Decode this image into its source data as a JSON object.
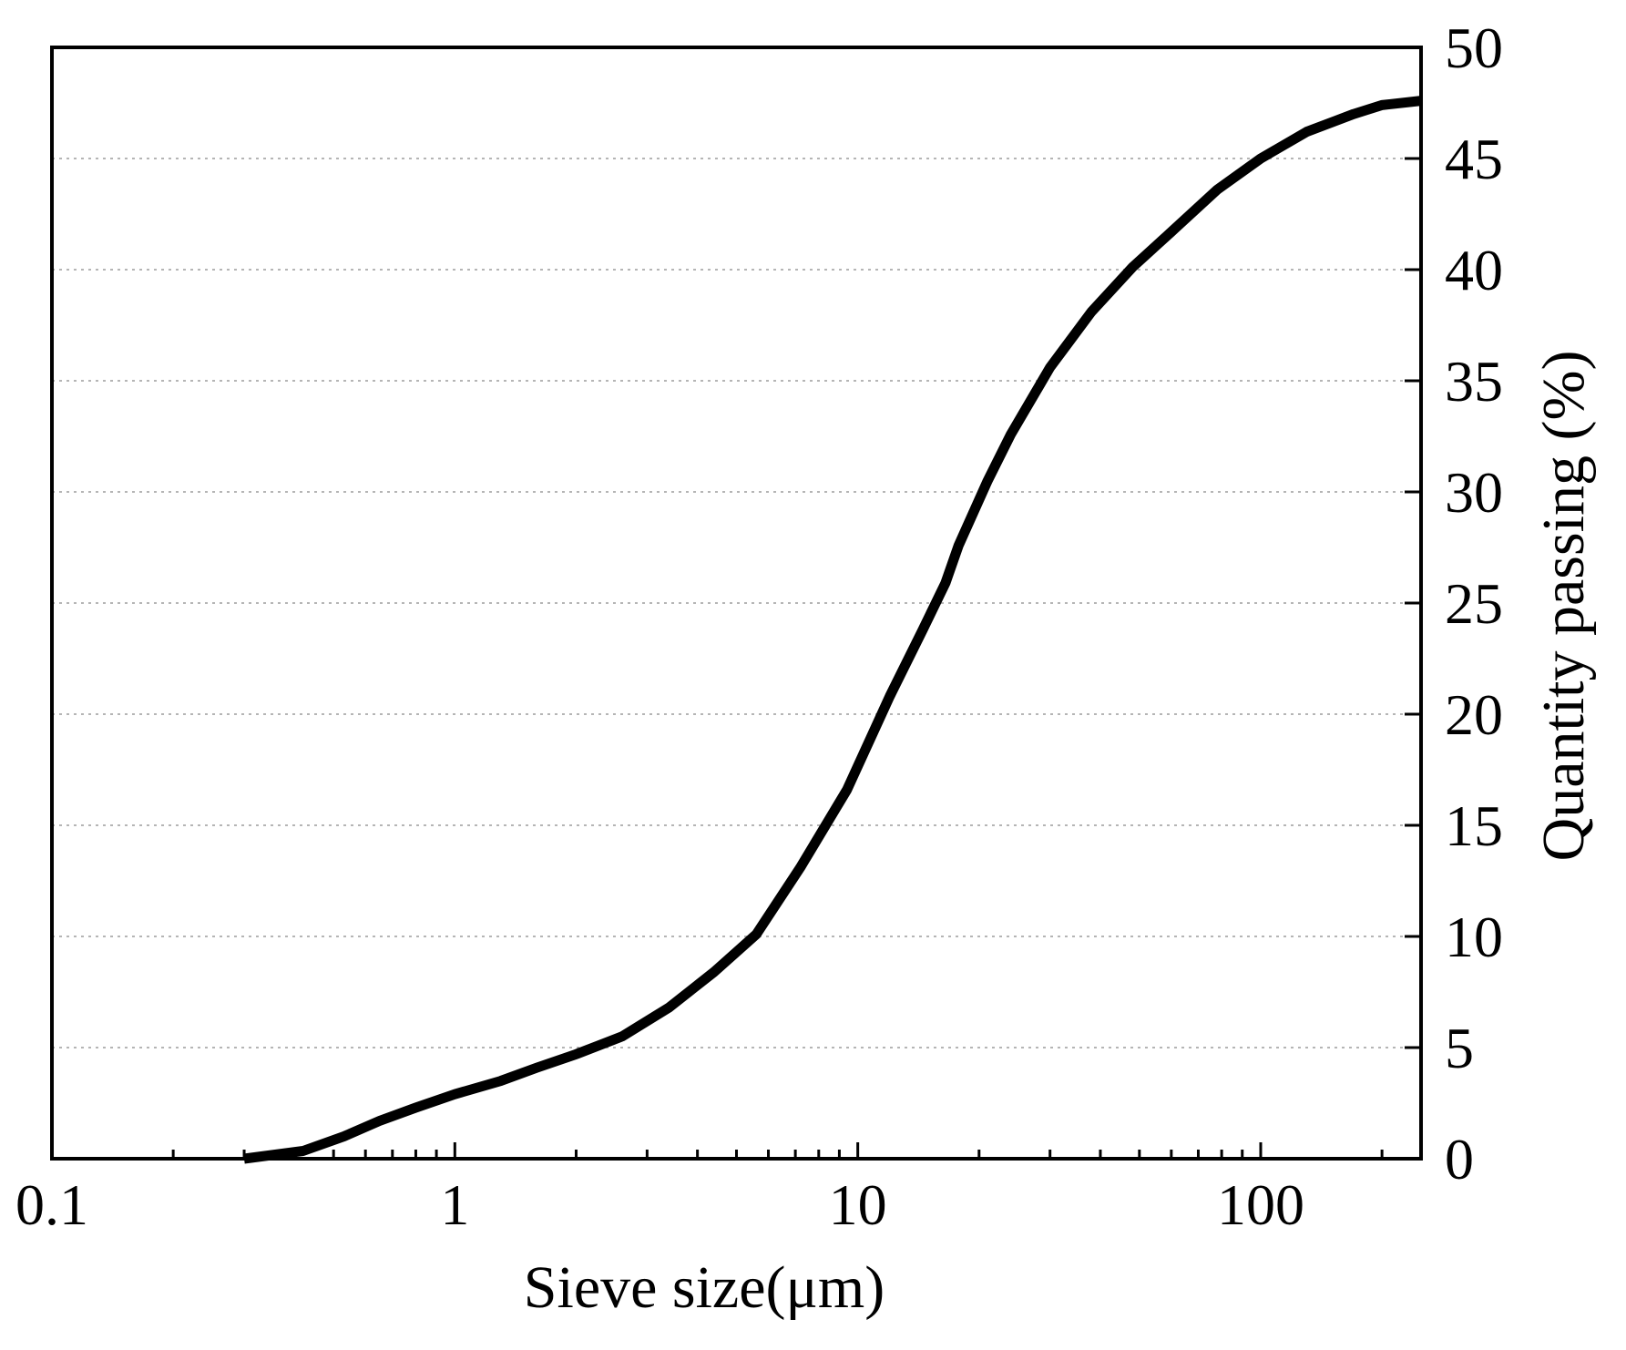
{
  "chart_data": {
    "type": "line",
    "title": "",
    "xlabel": "Sieve size(μm)",
    "ylabel": "Quantity passing (%)",
    "xscale": "log",
    "xlim": [
      0.1,
      250
    ],
    "ylim": [
      0,
      50
    ],
    "grid": {
      "horizontal": true,
      "vertical": false,
      "style": "dotted"
    },
    "y_axis_side": "right",
    "x_ticks": [
      0.1,
      1,
      10,
      100
    ],
    "x_tick_labels": [
      "0.1",
      "1",
      "10",
      "100"
    ],
    "y_ticks": [
      0,
      5,
      10,
      15,
      20,
      25,
      30,
      35,
      40,
      45,
      50
    ],
    "y_tick_labels": [
      "0",
      "5",
      "10",
      "15",
      "20",
      "25",
      "30",
      "35",
      "40",
      "45",
      "50"
    ],
    "line_color": "#000000",
    "series": [
      {
        "name": "",
        "x": [
          0.3,
          0.42,
          0.53,
          0.65,
          0.8,
          1.0,
          1.3,
          1.6,
          2.0,
          2.6,
          3.4,
          4.4,
          5.6,
          7.2,
          9.4,
          12.0,
          14.5,
          16.5,
          17.8,
          21.0,
          24.0,
          30.0,
          38.0,
          48.0,
          60.0,
          78.0,
          100.0,
          130.0,
          170.0,
          200.0,
          250.0
        ],
        "y": [
          0,
          0.35,
          1.0,
          1.7,
          2.3,
          2.9,
          3.5,
          4.1,
          4.7,
          5.5,
          6.8,
          8.4,
          10.1,
          13.1,
          16.6,
          20.8,
          23.8,
          25.9,
          27.6,
          30.5,
          32.6,
          35.6,
          38.1,
          40.1,
          41.7,
          43.6,
          45.0,
          46.2,
          47.0,
          47.4,
          47.6
        ]
      }
    ]
  }
}
